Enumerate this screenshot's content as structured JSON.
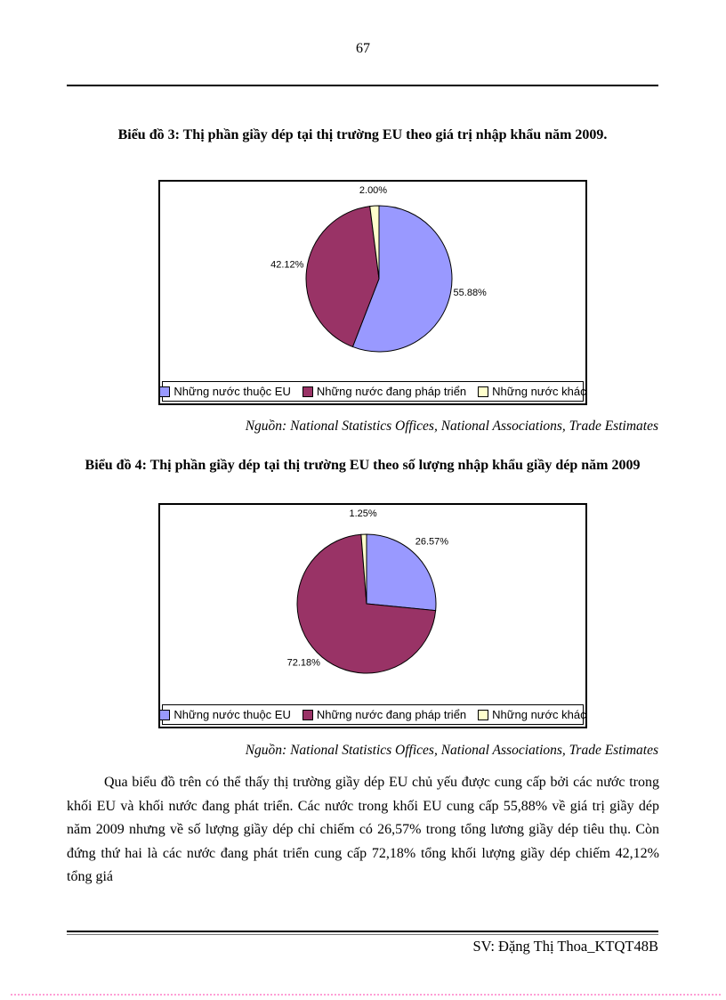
{
  "page": {
    "number": "67",
    "footer_text": "SV: Đặng Thị Thoa_KTQT48B"
  },
  "chart_data": [
    {
      "type": "pie",
      "title": "Biểu đồ 3: Thị phần giầy dép tại thị trường EU theo giá trị nhập khẩu năm 2009.",
      "source_note": "Nguồn: National Statistics Offices, National Associations, Trade Estimates",
      "labels": [
        "Những nước thuộc EU",
        "Những nước đang pháp triển",
        "Những nước khác"
      ],
      "values": [
        55.88,
        42.12,
        2.0
      ],
      "data_labels": [
        "55.88%",
        "42.12%",
        "2.00%"
      ],
      "colors": [
        "#9999ff",
        "#993366",
        "#ffffcc"
      ],
      "legend_position": "bottom",
      "start_angle_deg": 0,
      "direction": "clockwise"
    },
    {
      "type": "pie",
      "title": "Biểu đồ 4: Thị phần giầy dép tại thị trường EU theo số lượng nhập khẩu giầy dép năm 2009",
      "source_note": "Nguồn: National Statistics Offices, National Associations, Trade Estimates",
      "labels": [
        "Những nước thuộc EU",
        "Những nước đang pháp triển",
        "Những nước khác"
      ],
      "values": [
        26.57,
        72.18,
        1.25
      ],
      "data_labels": [
        "26.57%",
        "72.18%",
        "1.25%"
      ],
      "colors": [
        "#9999ff",
        "#993366",
        "#ffffcc"
      ],
      "legend_position": "bottom",
      "start_angle_deg": 0,
      "direction": "clockwise"
    }
  ],
  "body_paragraph": "Qua biểu đồ trên có thể thấy thị trường giầy dép EU chủ yếu được cung cấp bởi các nước trong khối EU và khối nước đang phát triển. Các nước trong khối EU cung cấp 55,88% về giá trị giầy dép năm 2009 nhưng về số lượng giầy dép chỉ chiếm có 26,57% trong tổng lương giầy dép tiêu thụ. Còn đứng thứ hai là các nước đang phát triển cung cấp 72,18% tổng khối lượng giầy dép chiếm 42,12% tổng giá",
  "accents": {
    "slice_eu": "#9999ff",
    "slice_developing": "#993366",
    "slice_other": "#ffffcc",
    "bottom_dotted_rule": "#ff9fd6"
  }
}
